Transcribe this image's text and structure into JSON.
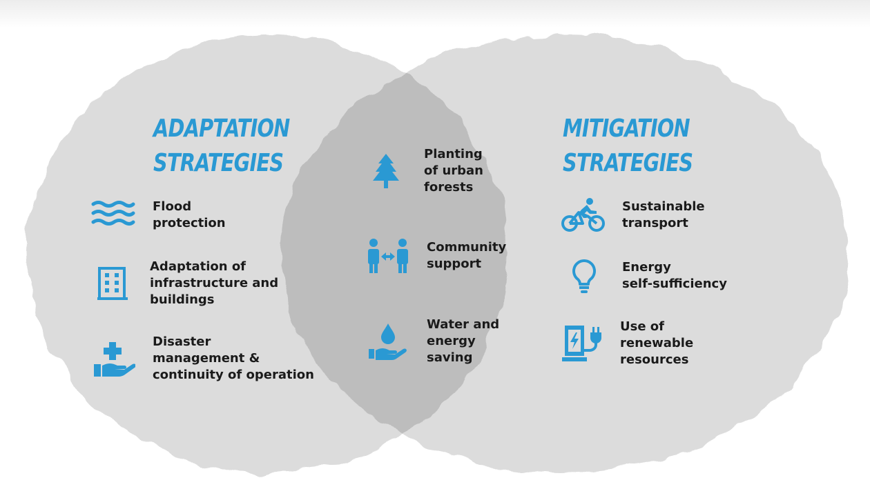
{
  "left": {
    "title_lines": [
      "Adaptation",
      "strategies"
    ],
    "items": [
      {
        "icon": "waves-icon",
        "lines": [
          "Flood",
          "protection"
        ]
      },
      {
        "icon": "building-icon",
        "lines": [
          "Adaptation of",
          "infrastructure and",
          "buildings"
        ]
      },
      {
        "icon": "hand-medical-cross-icon",
        "lines": [
          "Disaster",
          "management &",
          "continuity of operation"
        ]
      }
    ]
  },
  "center": {
    "items": [
      {
        "icon": "pine-tree-icon",
        "lines": [
          "Planting",
          "of urban",
          "forests"
        ]
      },
      {
        "icon": "people-exchange-icon",
        "lines": [
          "Community",
          "support"
        ]
      },
      {
        "icon": "hand-water-drop-icon",
        "lines": [
          "Water and",
          "energy",
          "saving"
        ]
      }
    ]
  },
  "right": {
    "title_lines": [
      "Mitigation",
      "strategies"
    ],
    "items": [
      {
        "icon": "bicycle-rider-icon",
        "lines": [
          "Sustainable",
          "transport"
        ]
      },
      {
        "icon": "lightbulb-icon",
        "lines": [
          "Energy",
          "self-sufficiency"
        ]
      },
      {
        "icon": "ev-charger-icon",
        "lines": [
          "Use of",
          "renewable",
          "resources"
        ]
      }
    ]
  },
  "colors": {
    "accent": "#2a99d3",
    "text": "#1a1a1a",
    "circle": "#d9d9d9",
    "overlap": "#c2c2c2"
  }
}
